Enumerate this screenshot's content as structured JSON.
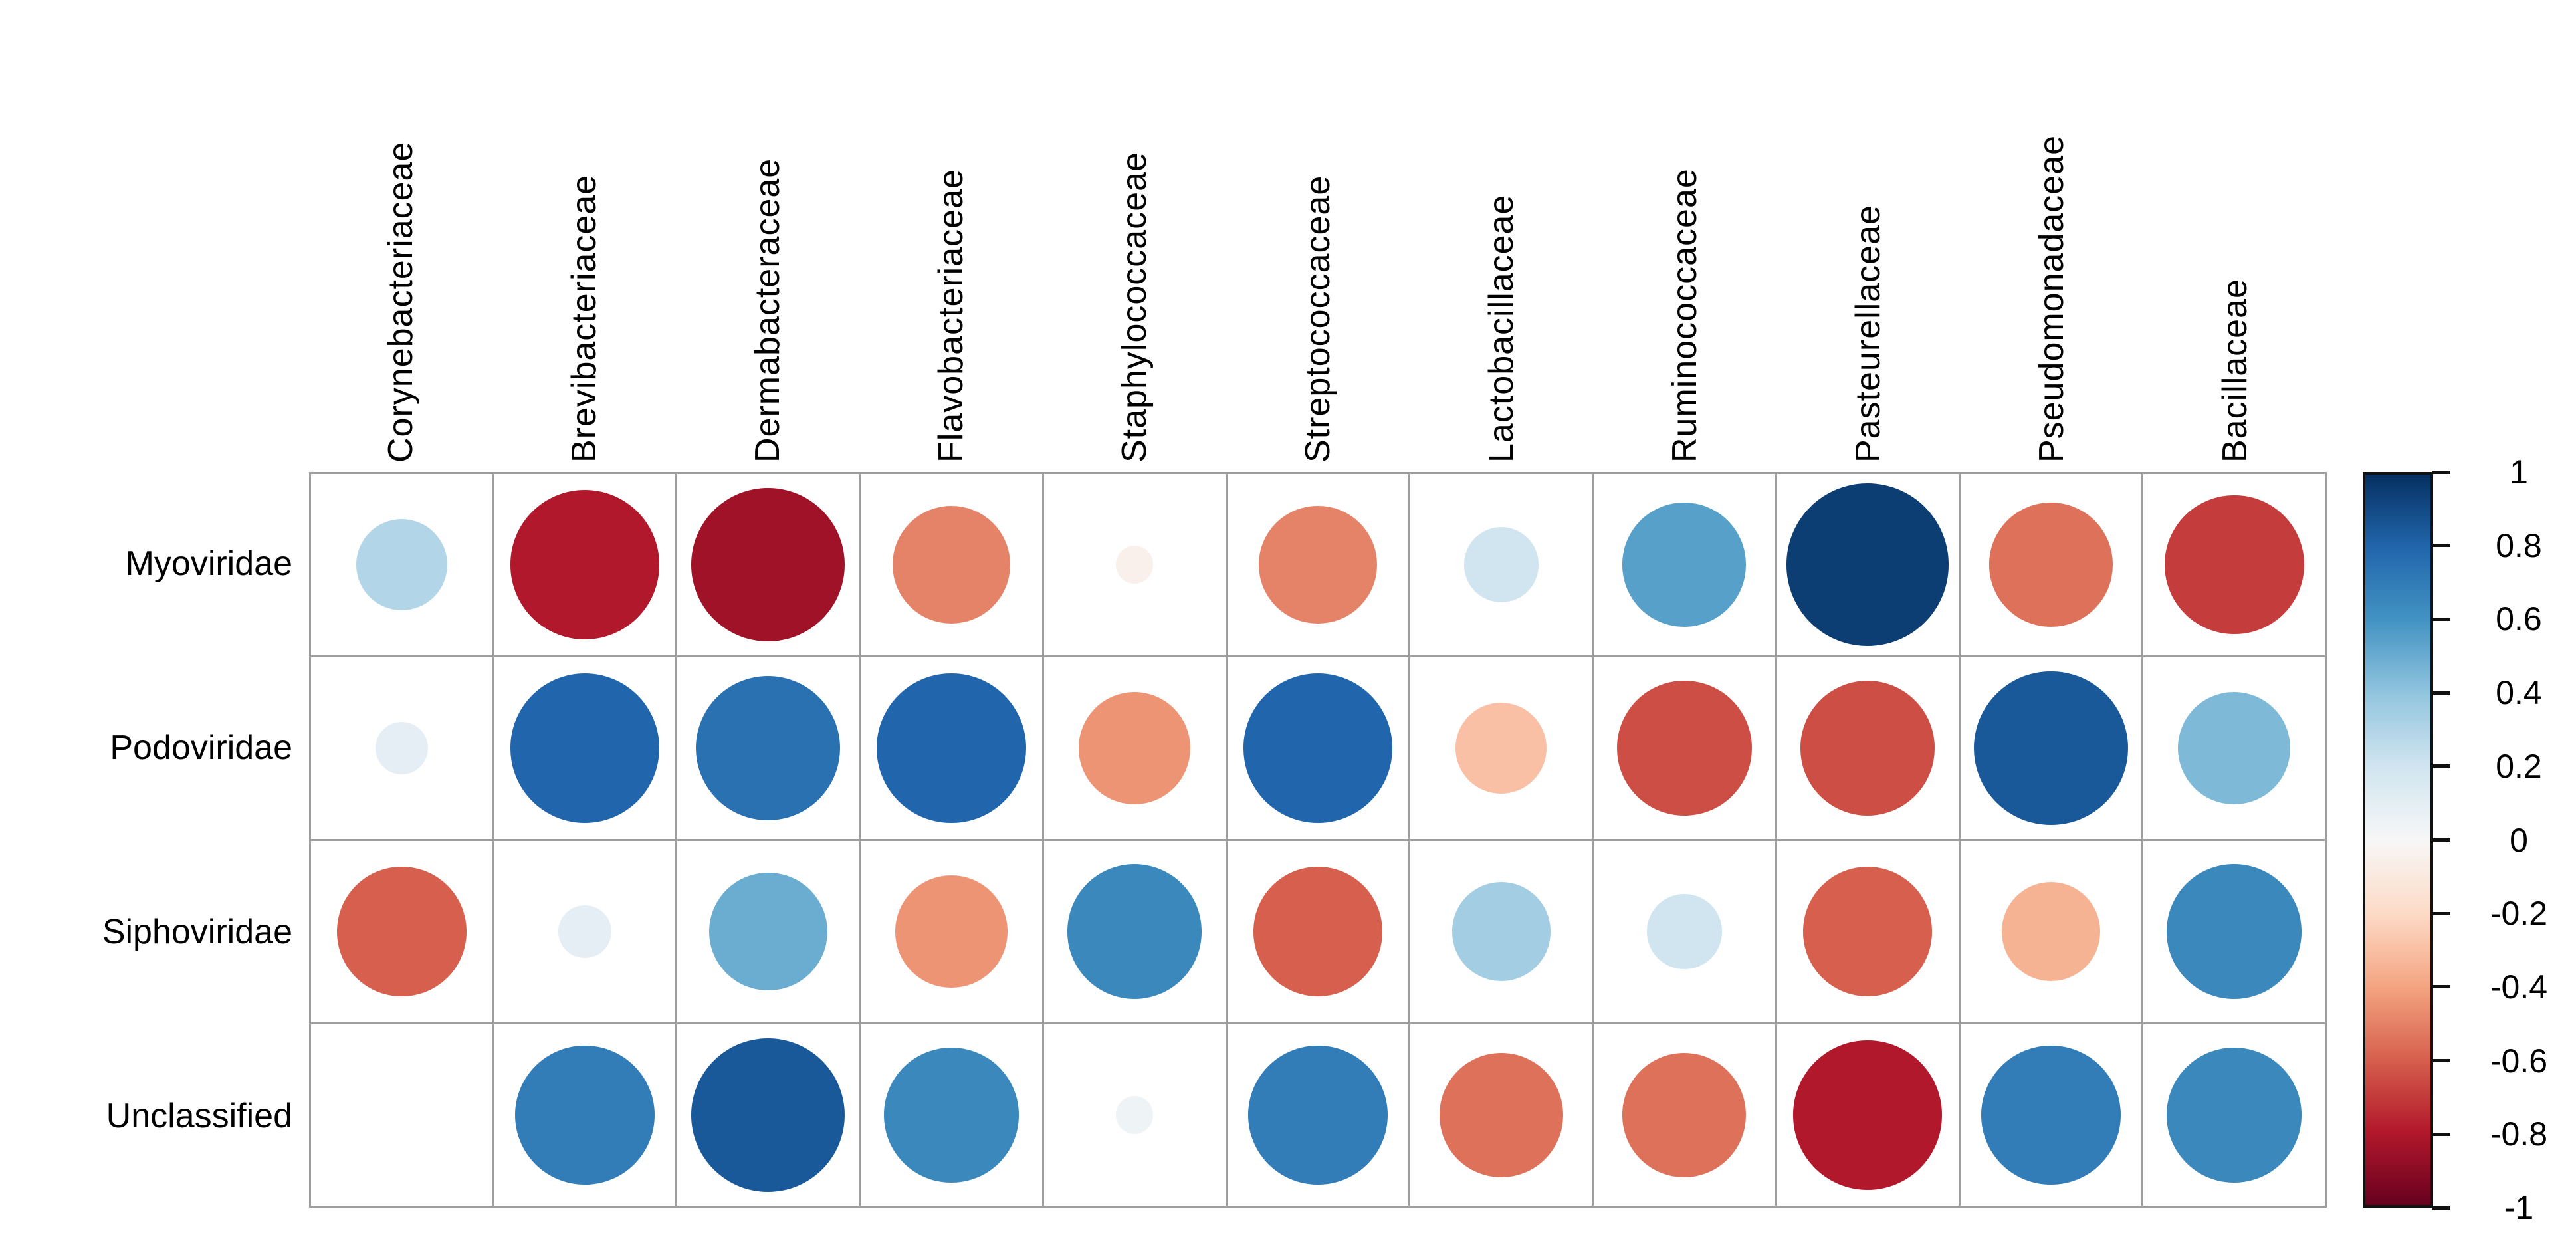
{
  "chart_data": {
    "type": "heatmap",
    "subtype": "correlation_bubble_matrix",
    "title": "",
    "rows": [
      "Myoviridae",
      "Podoviridae",
      "Siphoviridae",
      "Unclassified"
    ],
    "columns": [
      "Corynebacteriaceae",
      "Brevibacteriaceae",
      "Dermabacteraceae",
      "Flavobacteriaceae",
      "Staphylococcaceae",
      "Streptococcaceae",
      "Lactobacillaceae",
      "Ruminococcaceae",
      "Pasteurellaceae",
      "Pseudomonadaceae",
      "Bacillaceae"
    ],
    "values": [
      [
        0.3,
        -0.8,
        -0.85,
        -0.5,
        -0.05,
        -0.5,
        0.2,
        0.55,
        0.95,
        -0.55,
        -0.7
      ],
      [
        0.1,
        0.8,
        0.75,
        0.8,
        -0.45,
        0.8,
        -0.3,
        -0.65,
        -0.65,
        0.85,
        0.45
      ],
      [
        -0.6,
        0.1,
        0.5,
        -0.45,
        0.65,
        -0.6,
        0.35,
        0.2,
        -0.6,
        -0.35,
        0.65
      ],
      [
        0.0,
        0.7,
        0.85,
        0.65,
        0.05,
        0.7,
        -0.55,
        -0.55,
        -0.8,
        0.7,
        0.65
      ]
    ],
    "value_range": [
      -1,
      1
    ],
    "encoding": "circle diameter proportional to sqrt(|r|); blue = positive correlation, red = negative correlation",
    "grid": true,
    "legend_position": "right",
    "colorbar": {
      "tick_labels": [
        "1",
        "0.8",
        "0.6",
        "0.4",
        "0.2",
        "0",
        "-0.2",
        "-0.4",
        "-0.6",
        "-0.8",
        "-1"
      ],
      "tick_values": [
        1,
        0.8,
        0.6,
        0.4,
        0.2,
        0,
        -0.2,
        -0.4,
        -0.6,
        -0.8,
        -1
      ],
      "palette_top_to_bottom": [
        "#053061",
        "#2166AC",
        "#4393C3",
        "#92C5DE",
        "#D1E5F0",
        "#F7F7F7",
        "#FDDBC7",
        "#F4A582",
        "#D6604D",
        "#B2182B",
        "#67001F"
      ]
    },
    "colors": {
      "background": "#ffffff",
      "grid_line": "#9e9e9e",
      "label_text": "#000000",
      "colorbar_border": "#111111"
    }
  }
}
